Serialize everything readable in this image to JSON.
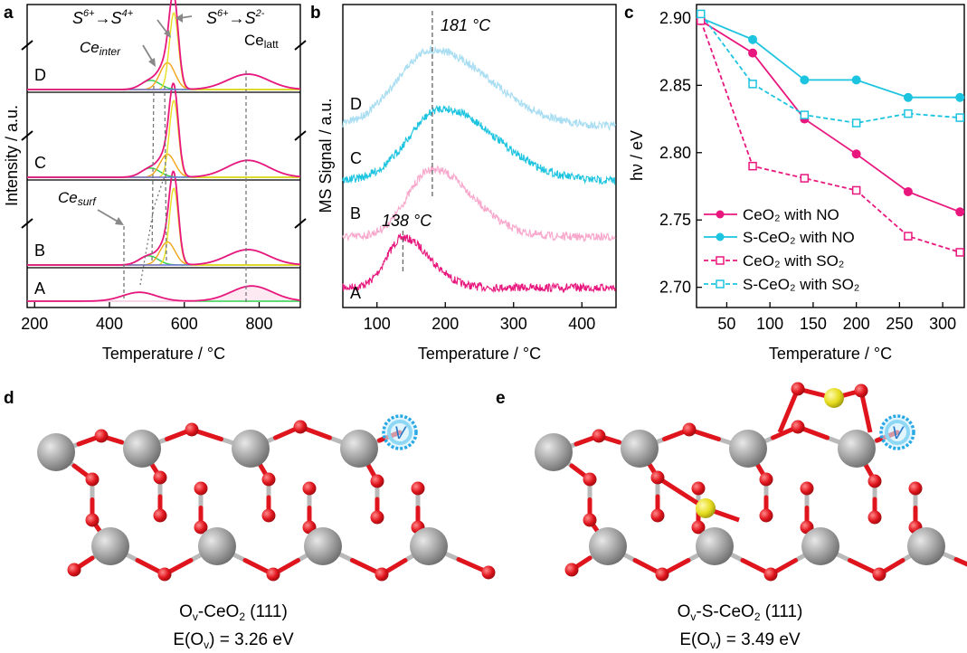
{
  "colors": {
    "ce_pink": "#e8177e",
    "s_cyan": "#1cc4e0",
    "b_pink": "#f7a8cc",
    "d_lightblue": "#a8ddf2",
    "ce_atom": "#a0a0a0",
    "o_atom": "#e0141c",
    "s_atom": "#e6dc1e",
    "vacancy_ring": "#28a9e6"
  },
  "panels": {
    "a": {
      "letter": "a",
      "ylabel": "Intensity / a.u.",
      "xlabel": "Temperature / °C",
      "xticks": [
        "200",
        "400",
        "600",
        "800"
      ],
      "trace_labels": [
        "A",
        "B",
        "C",
        "D"
      ],
      "annotations": {
        "s6_s4_pre": "S",
        "s6_s4_sup1": "6+",
        "s6_s4_arrow": "→S",
        "s6_s4_sup2": "4+",
        "s6_s2_pre": "S",
        "s6_s2_sup1": "6+",
        "s6_s2_arrow": "→S",
        "s6_s2_sup2": "2-",
        "ce_inter_main": "Ce",
        "ce_inter_sub": "inter",
        "ce_latt_main": "Ce",
        "ce_latt_sub": "latt",
        "ce_surf_main": "Ce",
        "ce_surf_sub": "surf"
      }
    },
    "b": {
      "letter": "b",
      "ylabel": "MS Signal / a.u.",
      "xlabel": "Temperature / °C",
      "xticks": [
        "100",
        "200",
        "300",
        "400"
      ],
      "trace_labels": [
        "A",
        "B",
        "C",
        "D"
      ],
      "peak_181": "181 °C",
      "peak_138": "138 °C"
    },
    "c": {
      "letter": "c",
      "ylabel": "hν / eV",
      "xlabel": "Temperature / °C"
    },
    "d": {
      "letter": "d",
      "vac_symbol": "V",
      "caption_pre": "O",
      "caption_sub": "v",
      "caption_main": "-CeO",
      "caption_sub2": "2",
      "caption_post": " (111)",
      "energy_pre": "E(O",
      "energy_sub": "v",
      "energy_post": ") = 3.26 eV"
    },
    "e": {
      "letter": "e",
      "vac_symbol": "V",
      "caption_pre": "O",
      "caption_sub": "v",
      "caption_main": "-S-CeO",
      "caption_sub2": "2",
      "caption_post": " (111)",
      "energy_pre": "E(O",
      "energy_sub": "v",
      "energy_post": ") = 3.49 eV"
    }
  },
  "chart_data": [
    {
      "panel": "a",
      "type": "line",
      "xlabel": "Temperature / °C",
      "ylabel": "Intensity / a.u.",
      "xlim": [
        180,
        910
      ],
      "xticks": [
        200,
        400,
        600,
        800
      ],
      "series": [
        {
          "name": "A",
          "peaks": [
            {
              "center": 480,
              "height": 0.35,
              "width": 45
            },
            {
              "center": 780,
              "height": 0.6,
              "width": 55
            }
          ]
        },
        {
          "name": "B",
          "peaks": [
            {
              "center": 505,
              "height": 0.12,
              "width": 25
            },
            {
              "center": 555,
              "height": 0.3,
              "width": 20
            },
            {
              "center": 572,
              "height": 1.0,
              "width": 12
            },
            {
              "center": 770,
              "height": 0.2,
              "width": 55
            }
          ]
        },
        {
          "name": "C",
          "peaks": [
            {
              "center": 510,
              "height": 0.12,
              "width": 25
            },
            {
              "center": 555,
              "height": 0.3,
              "width": 20
            },
            {
              "center": 572,
              "height": 1.0,
              "width": 12
            },
            {
              "center": 770,
              "height": 0.22,
              "width": 55
            }
          ]
        },
        {
          "name": "D",
          "peaks": [
            {
              "center": 510,
              "height": 0.12,
              "width": 25
            },
            {
              "center": 555,
              "height": 0.35,
              "width": 20
            },
            {
              "center": 572,
              "height": 1.0,
              "width": 12
            },
            {
              "center": 770,
              "height": 0.2,
              "width": 55
            }
          ]
        }
      ],
      "annotations": [
        "S6+→S4+",
        "S6+→S2-",
        "Ce inter",
        "Ce latt",
        "Ce surf"
      ]
    },
    {
      "panel": "b",
      "type": "line",
      "xlabel": "Temperature / °C",
      "ylabel": "MS Signal / a.u.",
      "xlim": [
        50,
        450
      ],
      "xticks": [
        100,
        200,
        300,
        400
      ],
      "series": [
        {
          "name": "A",
          "peak_center": 138,
          "peak_height": 0.55,
          "width": 30,
          "baseline": 0.0
        },
        {
          "name": "B",
          "peak_center": 181,
          "peak_height": 0.75,
          "width": 45,
          "baseline": 0.0
        },
        {
          "name": "C",
          "peak_center": 195,
          "peak_height": 0.75,
          "width": 60,
          "baseline": 0.0
        },
        {
          "name": "D",
          "peak_center": 181,
          "peak_height": 0.85,
          "width": 65,
          "baseline": 0.0
        }
      ],
      "annotations": [
        {
          "text": "181 °C",
          "x": 181
        },
        {
          "text": "138 °C",
          "x": 138
        }
      ]
    },
    {
      "panel": "c",
      "type": "line",
      "xlabel": "Temperature / °C",
      "ylabel": "hν / eV",
      "xlim": [
        15,
        325
      ],
      "ylim": [
        2.685,
        2.91
      ],
      "xticks": [
        50,
        100,
        150,
        200,
        250,
        300
      ],
      "yticks": [
        2.7,
        2.75,
        2.8,
        2.85,
        2.9
      ],
      "legend": "bottom-left",
      "series": [
        {
          "name": "CeO₂ with NO",
          "style": "solid",
          "marker": "filled-circle",
          "x": [
            20,
            80,
            140,
            200,
            260,
            320
          ],
          "y": [
            2.898,
            2.874,
            2.825,
            2.799,
            2.771,
            2.756
          ]
        },
        {
          "name": "S-CeO₂ with NO",
          "style": "solid",
          "marker": "filled-circle",
          "x": [
            20,
            80,
            140,
            200,
            260,
            320
          ],
          "y": [
            2.9,
            2.884,
            2.854,
            2.854,
            2.841,
            2.841
          ]
        },
        {
          "name": "CeO₂ with SO₂",
          "style": "dashed",
          "marker": "open-square",
          "x": [
            20,
            80,
            140,
            200,
            260,
            320
          ],
          "y": [
            2.898,
            2.79,
            2.781,
            2.772,
            2.738,
            2.726
          ]
        },
        {
          "name": "S-CeO₂ with SO₂",
          "style": "dashed",
          "marker": "open-square",
          "x": [
            20,
            80,
            140,
            200,
            260,
            320
          ],
          "y": [
            2.903,
            2.851,
            2.828,
            2.822,
            2.829,
            2.826
          ]
        }
      ]
    }
  ]
}
